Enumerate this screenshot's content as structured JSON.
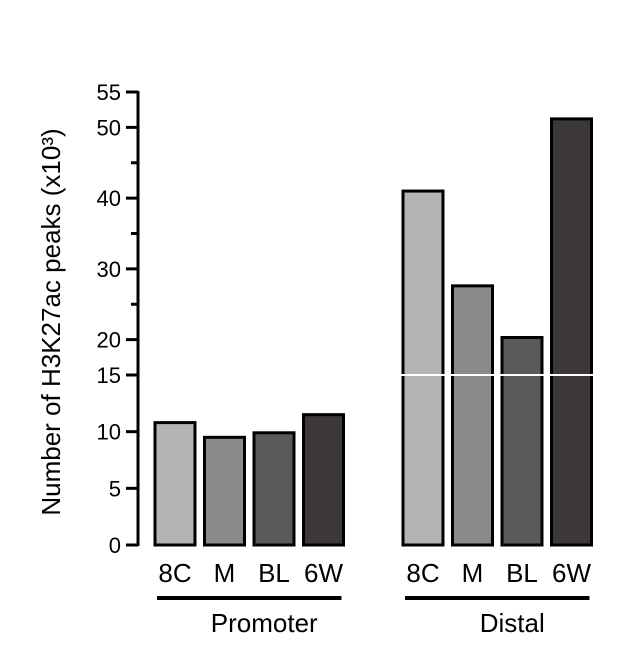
{
  "chart_data": {
    "type": "bar",
    "title": "",
    "ylabel": "Number of H3K27ac peaks (x10³)",
    "xlabel": "",
    "ylim": [
      0,
      55
    ],
    "axis_break": 15,
    "yticks": [
      {
        "value": 0,
        "label": "0"
      },
      {
        "value": 5,
        "label": "5"
      },
      {
        "value": 10,
        "label": "10"
      },
      {
        "value": 15,
        "label": "15"
      },
      {
        "value": 20,
        "label": "20"
      },
      {
        "value": 30,
        "label": "30"
      },
      {
        "value": 40,
        "label": "40"
      },
      {
        "value": 50,
        "label": "50"
      },
      {
        "value": 55,
        "label": "55"
      }
    ],
    "minor_yticks": [
      25,
      35,
      45
    ],
    "grid": false,
    "groups": [
      {
        "name": "Promoter",
        "categories": [
          "8C",
          "M",
          "BL",
          "6W"
        ],
        "values": [
          10.8,
          9.5,
          9.9,
          11.5
        ],
        "colors": [
          "#b4b4b4",
          "#8a8a8a",
          "#5a5a5a",
          "#3d3838"
        ]
      },
      {
        "name": "Distal",
        "categories": [
          "8C",
          "M",
          "BL",
          "6W"
        ],
        "values": [
          41,
          27.6,
          20.3,
          51.2
        ],
        "colors": [
          "#b4b4b4",
          "#8a8a8a",
          "#5a5a5a",
          "#3d3838"
        ]
      }
    ]
  }
}
